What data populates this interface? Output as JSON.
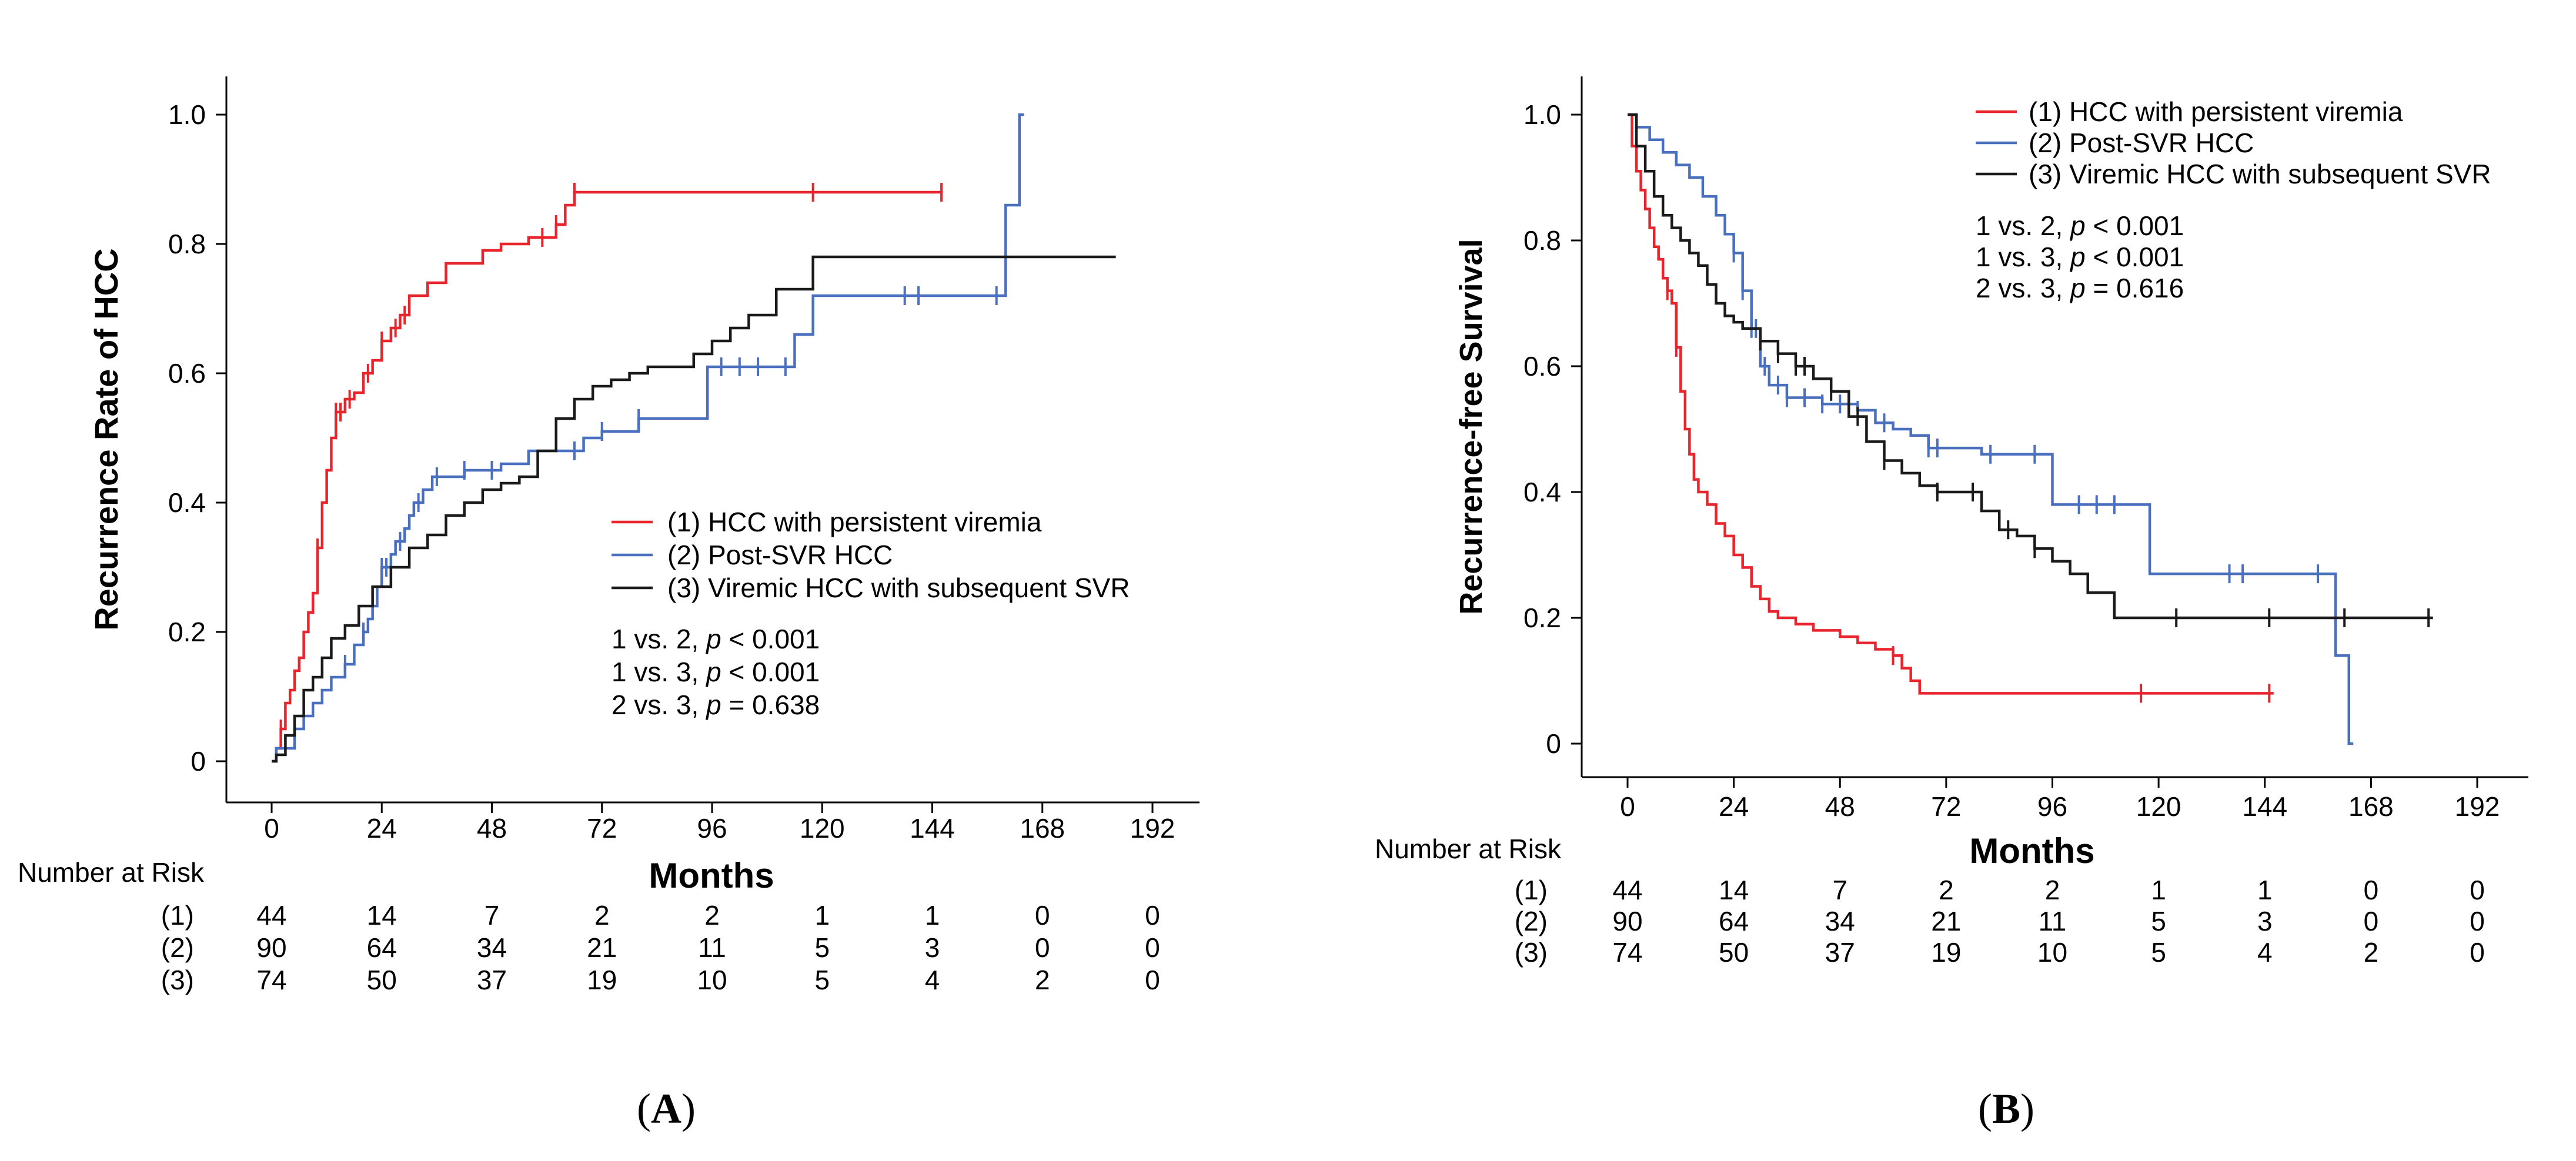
{
  "colors": {
    "group1": "#e8242c",
    "group2": "#4a6fbf",
    "group3": "#1a1a1a"
  },
  "chart_data": [
    {
      "panel": "(A)",
      "type": "line",
      "step": true,
      "xlabel": "Months",
      "ylabel": "Recurrence Rate of HCC",
      "xticks": [
        0,
        24,
        48,
        72,
        96,
        120,
        144,
        168,
        192
      ],
      "yticks": [
        "0",
        "0.2",
        "0.4",
        "0.6",
        "0.8",
        "1.0"
      ],
      "xlim": [
        -10,
        205
      ],
      "ylim": [
        -0.06,
        1.06
      ],
      "series": [
        {
          "name": "(1) HCC with persistent viremia",
          "color": "#e8242c",
          "x": [
            1,
            2,
            3,
            4,
            5,
            6,
            7,
            8,
            9,
            10,
            11,
            12,
            13,
            14,
            16,
            18,
            20,
            22,
            24,
            26,
            28,
            30,
            34,
            38,
            46,
            50,
            56,
            62,
            64,
            66,
            146
          ],
          "y": [
            0.02,
            0.05,
            0.09,
            0.11,
            0.14,
            0.16,
            0.2,
            0.23,
            0.26,
            0.33,
            0.4,
            0.45,
            0.5,
            0.54,
            0.56,
            0.57,
            0.6,
            0.62,
            0.65,
            0.67,
            0.69,
            0.72,
            0.74,
            0.77,
            0.79,
            0.8,
            0.81,
            0.83,
            0.86,
            0.88,
            0.88
          ],
          "censored": [
            2,
            10,
            14,
            15,
            17,
            21,
            24,
            27,
            29,
            59,
            62,
            66,
            118,
            146
          ]
        },
        {
          "name": "(2) Post-SVR HCC",
          "color": "#4a6fbf",
          "x": [
            1,
            5,
            7,
            9,
            11,
            13,
            16,
            18,
            20,
            21,
            22,
            23,
            24,
            26,
            27,
            29,
            30,
            31,
            33,
            35,
            38,
            42,
            50,
            56,
            62,
            68,
            72,
            80,
            95,
            114,
            118,
            158,
            160,
            163,
            164
          ],
          "y": [
            0.02,
            0.05,
            0.07,
            0.09,
            0.11,
            0.13,
            0.15,
            0.18,
            0.2,
            0.22,
            0.24,
            0.27,
            0.3,
            0.32,
            0.34,
            0.36,
            0.38,
            0.4,
            0.42,
            0.44,
            0.44,
            0.45,
            0.46,
            0.48,
            0.48,
            0.5,
            0.51,
            0.53,
            0.61,
            0.66,
            0.72,
            0.72,
            0.86,
            1.0,
            1.0
          ],
          "censored": [
            16,
            20,
            22,
            24,
            25,
            28,
            32,
            36,
            42,
            48,
            66,
            72,
            80,
            98,
            102,
            106,
            112,
            138,
            141,
            158
          ]
        },
        {
          "name": "(3) Viremic HCC with subsequent SVR",
          "color": "#1a1a1a",
          "x": [
            1,
            3,
            5,
            7,
            9,
            11,
            13,
            16,
            19,
            22,
            26,
            30,
            34,
            38,
            42,
            46,
            50,
            54,
            58,
            62,
            66,
            70,
            74,
            78,
            82,
            88,
            92,
            96,
            100,
            104,
            110,
            118,
            130,
            150,
            160,
            184
          ],
          "y": [
            0.01,
            0.04,
            0.07,
            0.11,
            0.13,
            0.16,
            0.19,
            0.21,
            0.24,
            0.27,
            0.3,
            0.33,
            0.35,
            0.38,
            0.4,
            0.42,
            0.43,
            0.44,
            0.48,
            0.53,
            0.56,
            0.58,
            0.59,
            0.6,
            0.61,
            0.61,
            0.63,
            0.65,
            0.67,
            0.69,
            0.73,
            0.78,
            0.78,
            0.78,
            0.78,
            0.78
          ]
        }
      ],
      "legend": {
        "entries": [
          "(1) HCC with persistent viremia",
          "(2) Post-SVR HCC",
          "(3) Viremic HCC with subsequent SVR"
        ],
        "position": "center-right"
      },
      "annotations": [
        {
          "comparison": "1 vs. 2, ",
          "p_label": "p",
          "p_value": " < 0.001"
        },
        {
          "comparison": "1 vs. 3, ",
          "p_label": "p",
          "p_value": " < 0.001"
        },
        {
          "comparison": "2 vs. 3, ",
          "p_label": "p",
          "p_value": " = 0.638"
        }
      ],
      "number_at_risk": {
        "title": "Number at Risk",
        "rows": [
          {
            "label": "(1)",
            "values": [
              "44",
              "14",
              "7",
              "2",
              "2",
              "1",
              "1",
              "0",
              "0"
            ]
          },
          {
            "label": "(2)",
            "values": [
              "90",
              "64",
              "34",
              "21",
              "11",
              "5",
              "3",
              "0",
              "0"
            ]
          },
          {
            "label": "(3)",
            "values": [
              "74",
              "50",
              "37",
              "19",
              "10",
              "5",
              "4",
              "2",
              "0"
            ]
          }
        ]
      }
    },
    {
      "panel": "(B)",
      "type": "line",
      "step": true,
      "xlabel": "Months",
      "ylabel": "Recurrence-free Survival",
      "xticks": [
        0,
        24,
        48,
        72,
        96,
        120,
        144,
        168,
        192
      ],
      "yticks": [
        "0",
        "0.2",
        "0.4",
        "0.6",
        "0.8",
        "1.0"
      ],
      "xlim": [
        -10,
        200
      ],
      "ylim": [
        -0.06,
        1.06
      ],
      "series": [
        {
          "name": "(1) HCC with persistent viremia",
          "color": "#e8242c",
          "x": [
            0,
            1,
            2,
            3,
            4,
            5,
            6,
            7,
            8,
            9,
            10,
            11,
            12,
            13,
            14,
            15,
            16,
            18,
            20,
            22,
            24,
            26,
            28,
            30,
            32,
            34,
            38,
            42,
            48,
            52,
            56,
            60,
            62,
            64,
            66,
            146
          ],
          "y": [
            1.0,
            0.95,
            0.91,
            0.88,
            0.85,
            0.82,
            0.79,
            0.77,
            0.74,
            0.72,
            0.7,
            0.63,
            0.56,
            0.5,
            0.46,
            0.42,
            0.4,
            0.38,
            0.35,
            0.33,
            0.3,
            0.28,
            0.25,
            0.23,
            0.21,
            0.2,
            0.19,
            0.18,
            0.17,
            0.16,
            0.15,
            0.14,
            0.12,
            0.1,
            0.08,
            0.08
          ],
          "censored": [
            9,
            11,
            60,
            116,
            145
          ]
        },
        {
          "name": "(2) Post-SVR HCC",
          "color": "#4a6fbf",
          "x": [
            0,
            2,
            5,
            8,
            11,
            14,
            17,
            20,
            22,
            24,
            26,
            28,
            30,
            32,
            36,
            40,
            44,
            48,
            52,
            56,
            60,
            64,
            68,
            72,
            80,
            96,
            108,
            118,
            146,
            158,
            160,
            163,
            164
          ],
          "y": [
            1.0,
            0.98,
            0.96,
            0.94,
            0.92,
            0.9,
            0.87,
            0.84,
            0.81,
            0.78,
            0.72,
            0.66,
            0.6,
            0.57,
            0.55,
            0.55,
            0.54,
            0.54,
            0.53,
            0.51,
            0.5,
            0.49,
            0.47,
            0.47,
            0.46,
            0.38,
            0.38,
            0.27,
            0.27,
            0.27,
            0.14,
            0.0,
            0.0
          ],
          "censored": [
            24,
            26,
            28,
            29,
            31,
            34,
            36,
            40,
            44,
            48,
            52,
            58,
            68,
            70,
            82,
            92,
            102,
            106,
            110,
            136,
            139,
            156
          ]
        },
        {
          "name": "(3) Viremic HCC with subsequent SVR",
          "color": "#1a1a1a",
          "x": [
            0,
            2,
            4,
            6,
            8,
            10,
            12,
            14,
            16,
            18,
            20,
            22,
            24,
            26,
            30,
            34,
            38,
            42,
            46,
            50,
            54,
            58,
            62,
            66,
            70,
            74,
            80,
            84,
            88,
            92,
            96,
            100,
            104,
            110,
            116,
            124,
            150,
            160,
            182
          ],
          "y": [
            1.0,
            0.95,
            0.91,
            0.87,
            0.84,
            0.82,
            0.8,
            0.78,
            0.76,
            0.73,
            0.7,
            0.68,
            0.67,
            0.66,
            0.64,
            0.62,
            0.6,
            0.58,
            0.56,
            0.52,
            0.48,
            0.45,
            0.43,
            0.41,
            0.4,
            0.4,
            0.37,
            0.34,
            0.33,
            0.31,
            0.29,
            0.27,
            0.24,
            0.2,
            0.2,
            0.2,
            0.2,
            0.2,
            0.2
          ],
          "censored": [
            30,
            34,
            38,
            40,
            46,
            52,
            58,
            70,
            78,
            86,
            92,
            124,
            145,
            162,
            181
          ]
        }
      ],
      "legend": {
        "entries": [
          "(1) HCC with persistent viremia",
          "(2) Post-SVR HCC",
          "(3) Viremic HCC with subsequent SVR"
        ],
        "position": "top-right"
      },
      "annotations": [
        {
          "comparison": "1 vs. 2, ",
          "p_label": "p",
          "p_value": " < 0.001"
        },
        {
          "comparison": "1 vs. 3, ",
          "p_label": "p",
          "p_value": " < 0.001"
        },
        {
          "comparison": "2 vs. 3, ",
          "p_label": "p",
          "p_value": " = 0.616"
        }
      ],
      "number_at_risk": {
        "title": "Number at Risk",
        "rows": [
          {
            "label": "(1)",
            "values": [
              "44",
              "14",
              "7",
              "2",
              "2",
              "1",
              "1",
              "0",
              "0"
            ]
          },
          {
            "label": "(2)",
            "values": [
              "90",
              "64",
              "34",
              "21",
              "11",
              "5",
              "3",
              "0",
              "0"
            ]
          },
          {
            "label": "(3)",
            "values": [
              "74",
              "50",
              "37",
              "19",
              "10",
              "5",
              "4",
              "2",
              "0"
            ]
          }
        ]
      }
    }
  ]
}
